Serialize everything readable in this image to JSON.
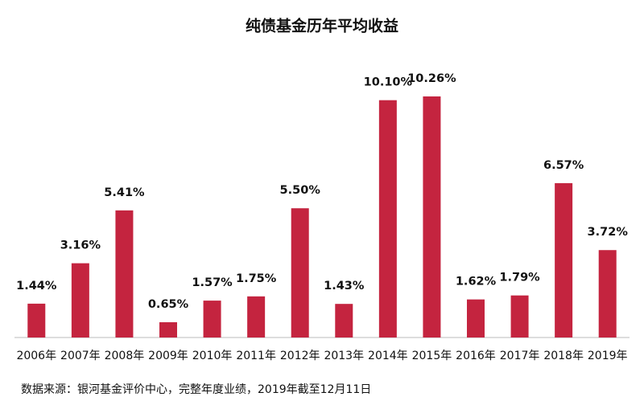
{
  "chart_data": {
    "type": "bar",
    "title": "纯债基金历年平均收益",
    "categories": [
      "2006年",
      "2007年",
      "2008年",
      "2009年",
      "2010年",
      "2011年",
      "2012年",
      "2013年",
      "2014年",
      "2015年",
      "2016年",
      "2017年",
      "2018年",
      "2019年"
    ],
    "values": [
      1.44,
      3.16,
      5.41,
      0.65,
      1.57,
      1.75,
      5.5,
      1.43,
      10.1,
      10.26,
      1.62,
      1.79,
      6.57,
      3.72
    ],
    "value_labels": [
      "1.44%",
      "3.16%",
      "5.41%",
      "0.65%",
      "1.57%",
      "1.75%",
      "5.50%",
      "1.43%",
      "10.10%",
      "10.26%",
      "1.62%",
      "1.79%",
      "6.57%",
      "3.72%"
    ],
    "color": "#c4243f",
    "source": "数据来源：银河基金评价中心，完整年度业绩，2019年截至12月11日"
  }
}
